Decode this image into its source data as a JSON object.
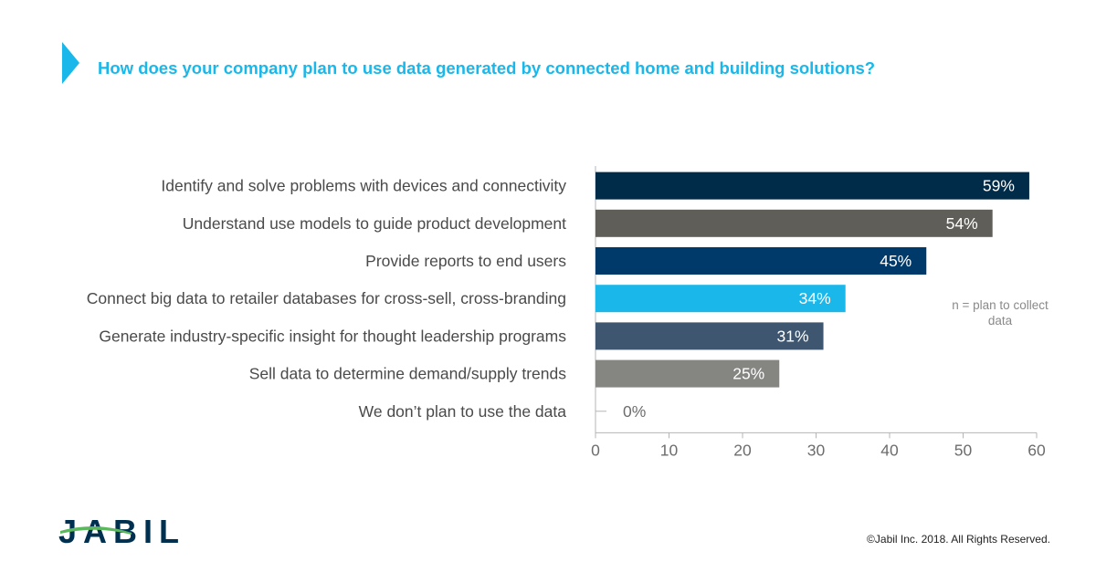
{
  "header": {
    "title": "How does your company plan to use data generated by connected home and building solutions?"
  },
  "chart_data": {
    "type": "bar",
    "orientation": "horizontal",
    "categories": [
      "Identify and solve problems with devices and connectivity",
      "Understand use models to guide product development",
      "Provide reports to end users",
      "Connect big data to retailer databases for cross-sell, cross-branding",
      "Generate industry-specific insight for thought leadership programs",
      "Sell data to determine demand/supply trends",
      "We don’t plan to use the data"
    ],
    "values": [
      59,
      54,
      45,
      34,
      31,
      25,
      0
    ],
    "value_labels": [
      "59%",
      "54%",
      "45%",
      "34%",
      "31%",
      "25%",
      "0%"
    ],
    "colors": [
      "#002c4a",
      "#5f5e59",
      "#003a6a",
      "#1ab7ea",
      "#3e5670",
      "#858582",
      "#858582"
    ],
    "xlim": [
      0,
      60
    ],
    "xticks": [
      0,
      10,
      20,
      30,
      40,
      50,
      60
    ],
    "grid": false,
    "annotation": "n = plan to collect data"
  },
  "footer": {
    "logo_text": "JABIL",
    "copyright": "©Jabil Inc. 2018. All Rights Reserved."
  },
  "colors": {
    "accent": "#1ab7ea",
    "brand_navy": "#00304f",
    "brand_green": "#5cb85c"
  }
}
